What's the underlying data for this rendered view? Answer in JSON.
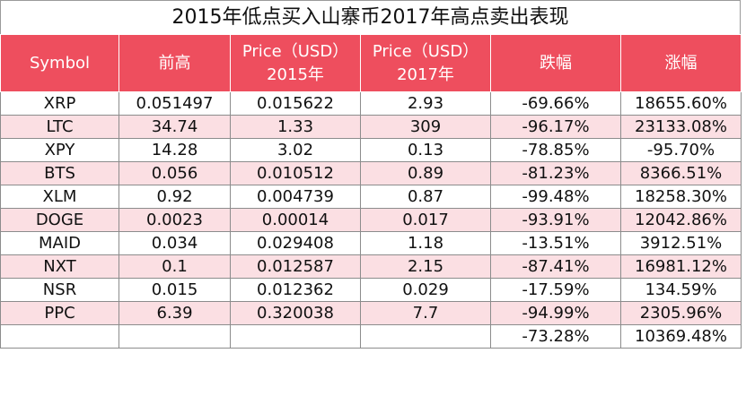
{
  "title": "2015年低点买入山寨币2017年高点卖出表现",
  "headers": {
    "symbol": "Symbol",
    "high": "前高",
    "price2015_line1": "Price（USD）",
    "price2015_line2": "2015年",
    "price2017_line1": "Price（USD）",
    "price2017_line2": "2017年",
    "drop": "跌幅",
    "gain": "涨幅"
  },
  "rows": [
    {
      "symbol": "XRP",
      "high": "0.051497",
      "p2015": "0.015622",
      "p2017": "2.93",
      "drop": "-69.66%",
      "gain": "18655.60%"
    },
    {
      "symbol": "LTC",
      "high": "34.74",
      "p2015": "1.33",
      "p2017": "309",
      "drop": "-96.17%",
      "gain": "23133.08%"
    },
    {
      "symbol": "XPY",
      "high": "14.28",
      "p2015": "3.02",
      "p2017": "0.13",
      "drop": "-78.85%",
      "gain": "-95.70%"
    },
    {
      "symbol": "BTS",
      "high": "0.056",
      "p2015": "0.010512",
      "p2017": "0.89",
      "drop": "-81.23%",
      "gain": "8366.51%"
    },
    {
      "symbol": "XLM",
      "high": "0.92",
      "p2015": "0.004739",
      "p2017": "0.87",
      "drop": "-99.48%",
      "gain": "18258.30%"
    },
    {
      "symbol": "DOGE",
      "high": "0.0023",
      "p2015": "0.00014",
      "p2017": "0.017",
      "drop": "-93.91%",
      "gain": "12042.86%"
    },
    {
      "symbol": "MAID",
      "high": "0.034",
      "p2015": "0.029408",
      "p2017": "1.18",
      "drop": "-13.51%",
      "gain": "3912.51%"
    },
    {
      "symbol": "NXT",
      "high": "0.1",
      "p2015": "0.012587",
      "p2017": "2.15",
      "drop": "-87.41%",
      "gain": "16981.12%"
    },
    {
      "symbol": "NSR",
      "high": "0.015",
      "p2015": "0.012362",
      "p2017": "0.029",
      "drop": "-17.59%",
      "gain": "134.59%"
    },
    {
      "symbol": "PPC",
      "high": "6.39",
      "p2015": "0.320038",
      "p2017": "7.7",
      "drop": "-94.99%",
      "gain": "2305.96%"
    }
  ],
  "summary": {
    "symbol": "",
    "high": "",
    "p2015": "",
    "p2017": "",
    "drop": "-73.28%",
    "gain": "10369.48%"
  },
  "colors": {
    "header_bg": "#ee4e5e",
    "alt_row_bg": "#fbdfe3"
  }
}
